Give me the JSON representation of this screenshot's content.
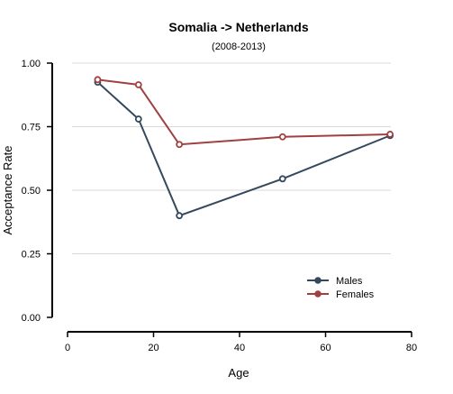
{
  "chart_data": {
    "type": "line",
    "title": "Somalia  -> Netherlands",
    "subtitle": "(2008-2013)",
    "xlabel": "Age",
    "ylabel": "Acceptance Rate",
    "xlim": [
      0,
      80
    ],
    "ylim": [
      0,
      1
    ],
    "xticks": [
      "0",
      "20",
      "40",
      "60",
      "80"
    ],
    "yticks": [
      "0.00",
      "0.25",
      "0.50",
      "0.75",
      "1.00"
    ],
    "grid": "horizontal",
    "legend_position": "bottom-right",
    "series": [
      {
        "name": "Males",
        "color": "#34495e",
        "x": [
          7,
          16.5,
          26,
          50,
          75
        ],
        "y": [
          0.925,
          0.78,
          0.4,
          0.545,
          0.715
        ]
      },
      {
        "name": "Females",
        "color": "#a04040",
        "x": [
          7,
          16.5,
          26,
          50,
          75
        ],
        "y": [
          0.935,
          0.915,
          0.68,
          0.71,
          0.72
        ]
      }
    ]
  }
}
